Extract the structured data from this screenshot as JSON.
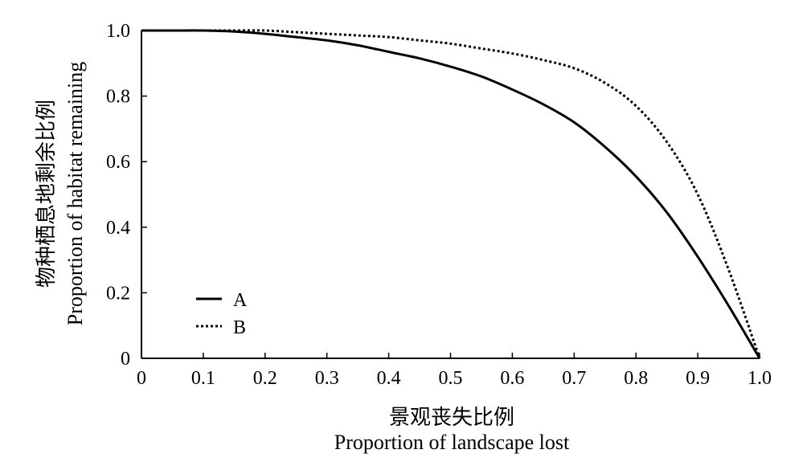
{
  "chart_data": {
    "type": "line",
    "title": "",
    "xlabel_cn": "景观丧失比例",
    "xlabel_en": "Proportion of landscape lost",
    "ylabel_cn": "物种栖息地剩余比例",
    "ylabel_en": "Proportion of habitat remaining",
    "xlim": [
      0,
      1.0
    ],
    "ylim": [
      0,
      1.0
    ],
    "xticks": [
      0,
      0.1,
      0.2,
      0.3,
      0.4,
      0.5,
      0.6,
      0.7,
      0.8,
      0.9,
      1.0
    ],
    "xtick_labels": [
      "0",
      "0.1",
      "0.2",
      "0.3",
      "0.4",
      "0.5",
      "0.6",
      "0.7",
      "0.8",
      "0.9",
      "1.0"
    ],
    "yticks": [
      0,
      0.2,
      0.4,
      0.6,
      0.8,
      1.0
    ],
    "ytick_labels": [
      "0",
      "0.2",
      "0.4",
      "0.6",
      "0.8",
      "1.0"
    ],
    "grid": false,
    "legend_position": "lower-left",
    "series": [
      {
        "name": "A",
        "style": "solid",
        "color": "#000000",
        "x": [
          0,
          0.05,
          0.1,
          0.15,
          0.2,
          0.25,
          0.3,
          0.35,
          0.4,
          0.45,
          0.5,
          0.55,
          0.6,
          0.65,
          0.7,
          0.75,
          0.8,
          0.85,
          0.9,
          0.95,
          1.0
        ],
        "y": [
          1.0,
          1.0,
          1.0,
          0.997,
          0.99,
          0.98,
          0.97,
          0.955,
          0.935,
          0.915,
          0.89,
          0.86,
          0.82,
          0.775,
          0.72,
          0.645,
          0.555,
          0.445,
          0.31,
          0.16,
          0.0
        ]
      },
      {
        "name": "B",
        "style": "dotted",
        "color": "#000000",
        "x": [
          0,
          0.05,
          0.1,
          0.15,
          0.2,
          0.25,
          0.3,
          0.35,
          0.4,
          0.45,
          0.5,
          0.55,
          0.6,
          0.65,
          0.7,
          0.75,
          0.8,
          0.85,
          0.9,
          0.95,
          1.0
        ],
        "y": [
          1.0,
          1.0,
          1.0,
          1.0,
          1.0,
          0.995,
          0.99,
          0.985,
          0.98,
          0.97,
          0.96,
          0.945,
          0.93,
          0.91,
          0.885,
          0.84,
          0.77,
          0.66,
          0.5,
          0.27,
          0.0
        ]
      }
    ]
  }
}
